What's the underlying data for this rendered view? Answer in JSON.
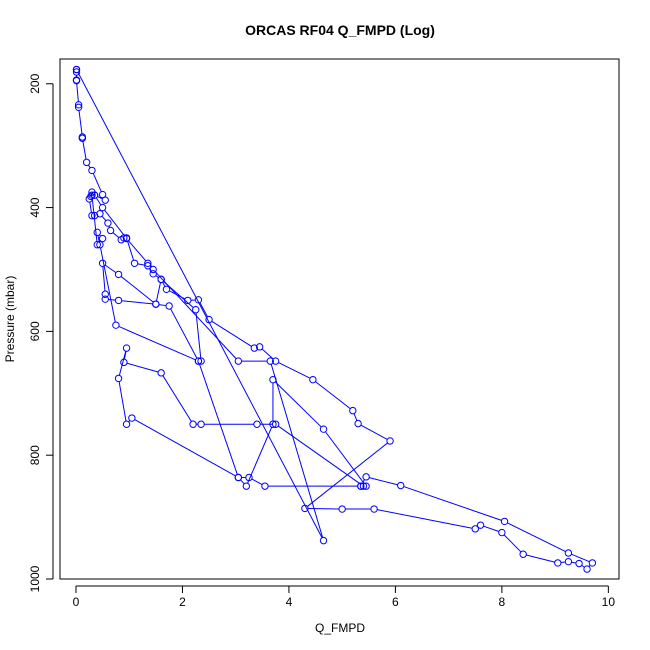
{
  "chart_data": {
    "type": "line",
    "title": "ORCAS RF04 Q_FMPD (Log)",
    "xlabel": "Q_FMPD",
    "ylabel": "Pressure (mbar)",
    "xlim": [
      -0.3,
      10.2
    ],
    "ylim": [
      1000,
      160
    ],
    "y_inverted": true,
    "xticks": [
      0,
      2,
      4,
      6,
      8,
      10
    ],
    "yticks": [
      200,
      400,
      600,
      800,
      1000
    ],
    "grid": false,
    "color": "#0000ff",
    "series": [
      {
        "points": [
          [
            0.01,
            177
          ],
          [
            0.01,
            181
          ],
          [
            0.01,
            194
          ],
          [
            0.01,
            195
          ],
          [
            0.05,
            234
          ],
          [
            0.05,
            238
          ],
          [
            0.12,
            286
          ],
          [
            0.12,
            288
          ],
          [
            0.2,
            327
          ],
          [
            0.3,
            340
          ],
          [
            0.5,
            379
          ],
          [
            0.55,
            388
          ],
          [
            0.35,
            380
          ],
          [
            0.3,
            375
          ],
          [
            0.28,
            382
          ],
          [
            0.25,
            386
          ],
          [
            0.3,
            413
          ],
          [
            0.35,
            413
          ],
          [
            0.45,
            410
          ],
          [
            0.6,
            425
          ],
          [
            0.65,
            437
          ],
          [
            0.85,
            452
          ],
          [
            0.9,
            449
          ],
          [
            0.95,
            449
          ],
          [
            1.1,
            490
          ],
          [
            1.35,
            494
          ],
          [
            1.45,
            507
          ],
          [
            1.6,
            516
          ],
          [
            1.7,
            532
          ],
          [
            2.1,
            550
          ],
          [
            2.3,
            549
          ],
          [
            2.5,
            581
          ],
          [
            3.35,
            627
          ],
          [
            3.45,
            625
          ],
          [
            3.75,
            648
          ],
          [
            4.45,
            678
          ],
          [
            5.2,
            728
          ],
          [
            5.3,
            749
          ],
          [
            5.9,
            777
          ],
          [
            4.3,
            886
          ],
          [
            5.0,
            887
          ],
          [
            5.6,
            887
          ],
          [
            7.5,
            919
          ],
          [
            7.6,
            913
          ],
          [
            8.0,
            925
          ],
          [
            8.4,
            960
          ],
          [
            9.05,
            974
          ],
          [
            9.25,
            972
          ],
          [
            9.45,
            975
          ],
          [
            9.6,
            984
          ],
          [
            9.7,
            974
          ],
          [
            9.25,
            958
          ],
          [
            8.05,
            907
          ],
          [
            6.1,
            849
          ],
          [
            5.45,
            835
          ],
          [
            5.35,
            850
          ],
          [
            5.4,
            850
          ],
          [
            3.75,
            750
          ],
          [
            3.4,
            750
          ],
          [
            2.35,
            750
          ],
          [
            2.2,
            750
          ],
          [
            1.6,
            667
          ],
          [
            0.9,
            650
          ],
          [
            0.95,
            627
          ],
          [
            0.8,
            676
          ],
          [
            0.95,
            750
          ],
          [
            1.05,
            740
          ],
          [
            3.05,
            836
          ],
          [
            3.25,
            836
          ],
          [
            3.55,
            850
          ],
          [
            5.35,
            850
          ],
          [
            5.45,
            850
          ],
          [
            4.65,
            758
          ],
          [
            3.7,
            678
          ],
          [
            3.7,
            750
          ],
          [
            3.2,
            850
          ],
          [
            3.05,
            836
          ],
          [
            2.3,
            648
          ],
          [
            2.35,
            648
          ],
          [
            2.25,
            565
          ],
          [
            1.6,
            516
          ],
          [
            1.5,
            556
          ],
          [
            0.8,
            508
          ],
          [
            0.5,
            490
          ],
          [
            0.55,
            540
          ],
          [
            0.55,
            548
          ],
          [
            0.8,
            550
          ],
          [
            1.5,
            556
          ],
          [
            1.75,
            559
          ],
          [
            2.3,
            648
          ],
          [
            0.75,
            590
          ],
          [
            0.45,
            460
          ],
          [
            0.4,
            440
          ],
          [
            0.5,
            450
          ],
          [
            0.4,
            460
          ],
          [
            0.3,
            380
          ],
          [
            0.35,
            380
          ],
          [
            0.5,
            400
          ],
          [
            0.95,
            450
          ],
          [
            1.35,
            490
          ],
          [
            1.45,
            500
          ],
          [
            3.05,
            648
          ],
          [
            3.65,
            648
          ],
          [
            4.65,
            938
          ],
          [
            0.01,
            177
          ]
        ]
      }
    ]
  }
}
